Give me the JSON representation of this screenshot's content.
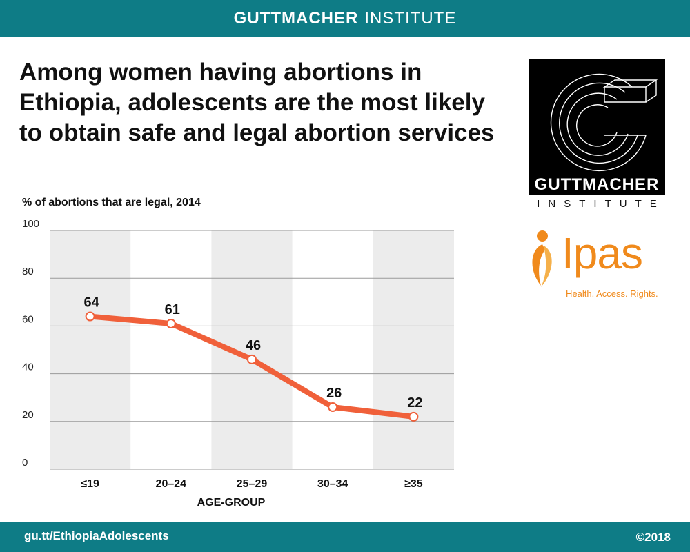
{
  "header": {
    "brand_bold": "GUTTMACHER",
    "brand_light": "INSTITUTE"
  },
  "headline": "Among women having abortions in Ethiopia, adolescents are the most likely to obtain safe and legal abortion services",
  "footer": {
    "url": "gu.tt/EthiopiaAdolescents",
    "copyright": "©2018"
  },
  "logos": {
    "guttmacher": {
      "name": "GUTTMACHER",
      "sub": "INSTITUTE"
    },
    "ipas": {
      "word": "Ipas",
      "tagline": "Health. Access. Rights."
    }
  },
  "colors": {
    "teal": "#0e7c86",
    "line": "#f0603a",
    "band": "#ececec",
    "orange": "#f08a1c"
  },
  "chart_data": {
    "type": "line",
    "title": "% of abortions that are legal, 2014",
    "xlabel": "AGE-GROUP",
    "ylabel": "",
    "categories": [
      "≤19",
      "20–24",
      "25–29",
      "30–34",
      "≥35"
    ],
    "series": [
      {
        "name": "% legal",
        "values": [
          64,
          61,
          46,
          26,
          22
        ]
      }
    ],
    "data_labels": [
      "64",
      "61",
      "46",
      "26",
      "22"
    ],
    "ylim": [
      0,
      100
    ],
    "yticks": [
      0,
      20,
      40,
      60,
      80,
      100
    ],
    "grid": true
  }
}
